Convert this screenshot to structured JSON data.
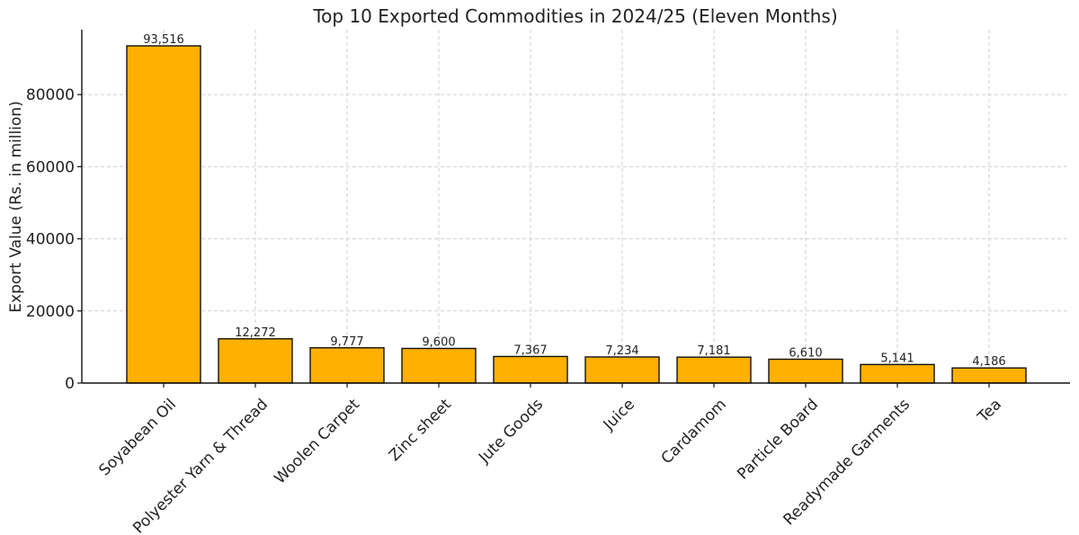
{
  "chart_data": {
    "type": "bar",
    "title": "Top 10 Exported Commodities in 2024/25 (Eleven Months)",
    "xlabel": "",
    "ylabel": "Export Value (Rs. in million)",
    "categories": [
      "Soyabean Oil",
      "Polyester Yarn & Thread",
      "Woolen Carpet",
      "Zinc sheet",
      "Jute Goods",
      "Juice",
      "Cardamom",
      "Particle Board",
      "Readymade Garments",
      "Tea"
    ],
    "values": [
      93516,
      12272,
      9777,
      9600,
      7367,
      7234,
      7181,
      6610,
      5141,
      4186
    ],
    "value_labels": [
      "93,516",
      "12,272",
      "9,777",
      "9,600",
      "7,367",
      "7,234",
      "7,181",
      "6,610",
      "5,141",
      "4,186"
    ],
    "ylim": [
      0,
      98000
    ],
    "yticks": [
      0,
      20000,
      40000,
      60000,
      80000
    ],
    "ytick_labels": [
      "0",
      "20000",
      "40000",
      "60000",
      "80000"
    ],
    "grid": true,
    "bar_color": "#FFB000",
    "edge_color": "#111111"
  }
}
